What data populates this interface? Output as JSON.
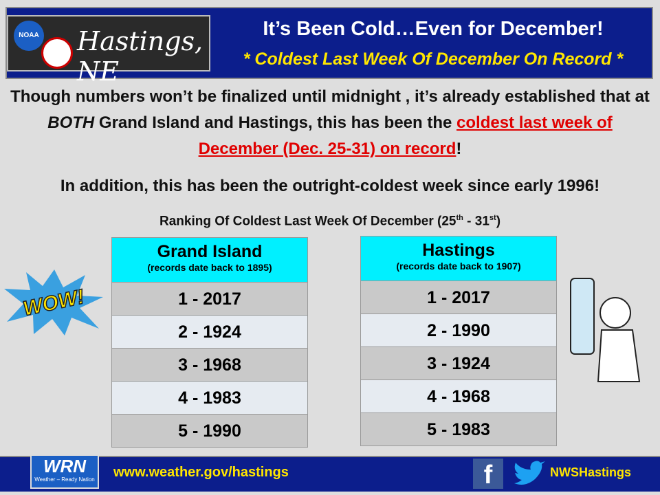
{
  "header": {
    "logo": "NOAA",
    "office": "Hastings, NE",
    "title": "It’s Been Cold…Even for December!",
    "subtitle": "* Coldest Last Week Of December On Record *"
  },
  "intro": [
    "Though numbers won’t be finalized until midnight , it’s already established that at ",
    "BOTH",
    " Grand Island and Hastings, this has been the ",
    "coldest last week of December (Dec. 25-31) on record",
    "!"
  ],
  "addition": "In addition, this has been the outright-coldest week since early 1996!",
  "caption": [
    "Ranking Of Coldest Last Week Of December (25",
    "th",
    " - 31",
    "st",
    ")"
  ],
  "wow": "WOW!",
  "tables": [
    {
      "name": "Grand Island",
      "note": "(records date back to 1895)",
      "rows": [
        "1 - 2017",
        "2 - 1924",
        "3 - 1968",
        "4 - 1983",
        "5 - 1990"
      ]
    },
    {
      "name": "Hastings",
      "note": "(records date back to 1907)",
      "rows": [
        "1 - 2017",
        "2 - 1990",
        "3 - 1924",
        "4 - 1968",
        "5 - 1983"
      ]
    }
  ],
  "footer": {
    "wrn": "WRN",
    "wrn_caption": "Weather – Ready Nation",
    "url": "www.weather.gov/hastings",
    "facebook": "f",
    "handle": "NWSHastings"
  }
}
